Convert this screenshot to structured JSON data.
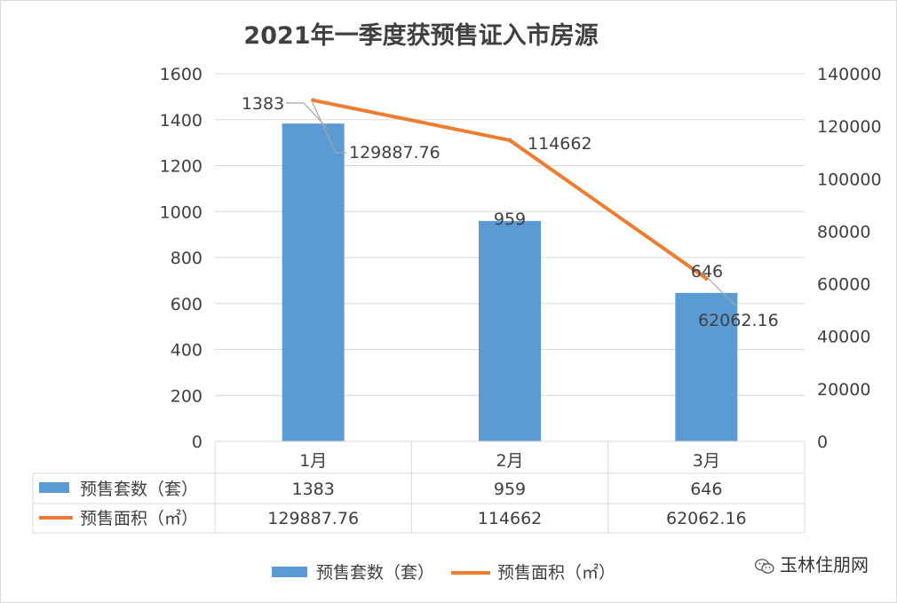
{
  "chart_data": {
    "type": "bar",
    "title": "2021年一季度获预售证入市房源",
    "categories": [
      "1月",
      "2月",
      "3月"
    ],
    "series": [
      {
        "name": "预售套数（套）",
        "type": "bar",
        "axis": "left",
        "color": "#5b9bd5",
        "values": [
          1383,
          959,
          646
        ],
        "labels": [
          "1383",
          "959",
          "646"
        ]
      },
      {
        "name": "预售面积（㎡）",
        "type": "line",
        "axis": "right",
        "color": "#ed7d31",
        "values": [
          129887.76,
          114662,
          62062.16
        ],
        "labels": [
          "129887.76",
          "114662",
          "62062.16"
        ]
      }
    ],
    "y_left": {
      "range": [
        0,
        1600
      ],
      "ticks": [
        "0",
        "200",
        "400",
        "600",
        "800",
        "1000",
        "1200",
        "1400",
        "1600"
      ]
    },
    "y_right": {
      "range": [
        0,
        140000
      ],
      "ticks": [
        "0",
        "20000",
        "40000",
        "60000",
        "80000",
        "100000",
        "120000",
        "140000"
      ]
    },
    "grid": true,
    "legend_position": "bottom",
    "data_table": true
  },
  "watermark": {
    "text": "玉林住朋网",
    "icon": "wechat-icon"
  }
}
